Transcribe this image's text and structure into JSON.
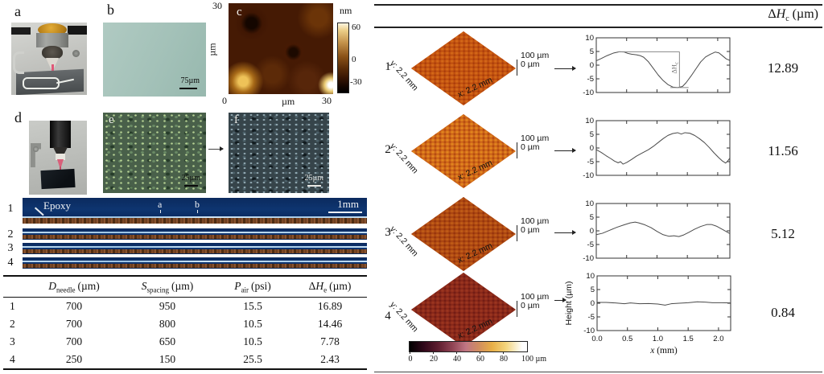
{
  "left": {
    "panels": {
      "a": {
        "label": "a"
      },
      "b": {
        "label": "b",
        "scale": "75µm"
      },
      "c": {
        "label": "c",
        "colorbar_title": "nm",
        "colorbar_ticks": [
          "60",
          "0",
          "-30"
        ],
        "axis_top": "30",
        "axis_left_unit": "µm",
        "axis_bottom_left": "0",
        "axis_bottom_unit": "µm",
        "axis_bottom_right": "30"
      },
      "d": {
        "label": "d"
      },
      "e": {
        "label": "e",
        "scale": "25µm"
      },
      "f": {
        "label": "f",
        "scale": "25µm"
      }
    },
    "stripes": {
      "row_labels": [
        "1",
        "2",
        "3",
        "4"
      ],
      "epoxy_label": "Epoxy",
      "marker_a": "a",
      "marker_b": "b",
      "scale_label": "1mm"
    },
    "table": {
      "headers": [
        {
          "sym": "D",
          "sub": "needle",
          "unit": "(µm)"
        },
        {
          "sym": "S",
          "sub": "spacing",
          "unit": "(µm)"
        },
        {
          "sym": "P",
          "sub": "air",
          "unit": "(psi)"
        },
        {
          "prefix": "Δ",
          "sym": "H",
          "sub": "e",
          "unit": "(µm)"
        }
      ],
      "rows": [
        {
          "id": "1",
          "d": "700",
          "s": "950",
          "p": "15.5",
          "h": "16.89"
        },
        {
          "id": "2",
          "d": "700",
          "s": "800",
          "p": "10.5",
          "h": "14.46"
        },
        {
          "id": "3",
          "d": "700",
          "s": "650",
          "p": "10.5",
          "h": "7.78"
        },
        {
          "id": "4",
          "d": "250",
          "s": "150",
          "p": "25.5",
          "h": "2.43"
        }
      ]
    }
  },
  "right": {
    "header": {
      "prefix": "Δ",
      "sym": "H",
      "sub": "c",
      "unit": "(µm)"
    },
    "rows": [
      {
        "num": "1",
        "y_label": "y: 2.2 mm",
        "x_label": "x: 2.2 mm",
        "scale_top": "100 µm",
        "scale_bottom": "0 µm",
        "value": "12.89"
      },
      {
        "num": "2",
        "y_label": "y: 2.2 mm",
        "x_label": "x: 2.2 mm",
        "scale_top": "100 µm",
        "scale_bottom": "0 µm",
        "value": "11.56"
      },
      {
        "num": "3",
        "y_label": "y: 2.2 mm",
        "x_label": "x: 2.2 mm",
        "scale_top": "100 µm",
        "scale_bottom": "0 µm",
        "value": "5.12"
      },
      {
        "num": "4",
        "y_label": "y: 2.2 mm",
        "x_label": "x: 2.2 mm",
        "scale_top": "100 µm",
        "scale_bottom": "0 µm",
        "value": "0.84"
      }
    ],
    "colorbar": {
      "ticks": [
        "0",
        "20",
        "40",
        "60",
        "80"
      ],
      "end_label": "100 µm"
    }
  },
  "colors": {
    "surface_orange": "#d1691a",
    "surface_dark_red": "#8c2a1a",
    "epoxy_blue": "#0e3570",
    "afm_brown": "#451a04"
  },
  "chart_data": [
    {
      "type": "line",
      "title": "",
      "xlabel": "",
      "ylabel": "",
      "xlim": [
        0,
        2.2
      ],
      "ylim": [
        -10,
        10
      ],
      "yticks": [
        10,
        5,
        0,
        -5,
        -10
      ],
      "xticks": [
        0,
        0.5,
        1.0,
        1.5,
        2.0
      ],
      "show_xlabels": false,
      "points": [
        [
          0,
          1.6
        ],
        [
          0.08,
          2.4
        ],
        [
          0.18,
          3.5
        ],
        [
          0.28,
          4.4
        ],
        [
          0.38,
          4.9
        ],
        [
          0.46,
          4.8
        ],
        [
          0.52,
          4.3
        ],
        [
          0.58,
          4.0
        ],
        [
          0.66,
          3.8
        ],
        [
          0.72,
          3.5
        ],
        [
          0.78,
          2.9
        ],
        [
          0.86,
          1.2
        ],
        [
          0.94,
          -1.2
        ],
        [
          1.02,
          -3.6
        ],
        [
          1.1,
          -5.6
        ],
        [
          1.18,
          -7.1
        ],
        [
          1.26,
          -8.0
        ],
        [
          1.34,
          -8.2
        ],
        [
          1.42,
          -7.8
        ],
        [
          1.48,
          -6.4
        ],
        [
          1.56,
          -4.0
        ],
        [
          1.64,
          -1.4
        ],
        [
          1.72,
          1.2
        ],
        [
          1.8,
          3.0
        ],
        [
          1.88,
          4.0
        ],
        [
          1.96,
          4.8
        ],
        [
          2.02,
          4.5
        ],
        [
          2.08,
          3.4
        ],
        [
          2.14,
          2.3
        ],
        [
          2.2,
          1.7
        ]
      ],
      "annotation": {
        "h_y": 4.9,
        "h_x0": 0.36,
        "h_x1": 1.37,
        "v_x": 1.37,
        "v_top": 4.9,
        "v_bot": -8.2,
        "b_y": -8.2,
        "b_x0": 1.22,
        "b_x1": 1.52,
        "label_prefix": "ΔH",
        "label_sub": "c"
      }
    },
    {
      "type": "line",
      "xlim": [
        0,
        2.2
      ],
      "ylim": [
        -10,
        10
      ],
      "yticks": [
        10,
        5,
        0,
        -5,
        -10
      ],
      "xticks": [
        0,
        0.5,
        1.0,
        1.5,
        2.0
      ],
      "show_xlabels": false,
      "points": [
        [
          0,
          -0.6
        ],
        [
          0.08,
          -1.6
        ],
        [
          0.16,
          -2.8
        ],
        [
          0.24,
          -3.9
        ],
        [
          0.3,
          -4.8
        ],
        [
          0.36,
          -5.4
        ],
        [
          0.4,
          -5.0
        ],
        [
          0.44,
          -5.9
        ],
        [
          0.5,
          -5.3
        ],
        [
          0.58,
          -4.2
        ],
        [
          0.66,
          -3.0
        ],
        [
          0.76,
          -1.8
        ],
        [
          0.86,
          -0.6
        ],
        [
          0.94,
          0.6
        ],
        [
          1.02,
          2.0
        ],
        [
          1.1,
          3.4
        ],
        [
          1.18,
          4.6
        ],
        [
          1.26,
          5.3
        ],
        [
          1.34,
          5.6
        ],
        [
          1.4,
          5.1
        ],
        [
          1.46,
          5.6
        ],
        [
          1.54,
          5.4
        ],
        [
          1.62,
          4.6
        ],
        [
          1.7,
          3.4
        ],
        [
          1.78,
          2.0
        ],
        [
          1.86,
          0.2
        ],
        [
          1.94,
          -1.8
        ],
        [
          2.02,
          -3.6
        ],
        [
          2.08,
          -4.8
        ],
        [
          2.13,
          -5.5
        ],
        [
          2.16,
          -4.9
        ],
        [
          2.2,
          -3.7
        ]
      ]
    },
    {
      "type": "line",
      "xlim": [
        0,
        2.2
      ],
      "ylim": [
        -10,
        10
      ],
      "yticks": [
        10,
        5,
        0,
        -5,
        -10
      ],
      "xticks": [
        0,
        0.5,
        1.0,
        1.5,
        2.0
      ],
      "show_xlabels": false,
      "points": [
        [
          0,
          -1.4
        ],
        [
          0.1,
          -0.9
        ],
        [
          0.22,
          0.2
        ],
        [
          0.34,
          1.3
        ],
        [
          0.46,
          2.2
        ],
        [
          0.56,
          2.9
        ],
        [
          0.64,
          3.2
        ],
        [
          0.7,
          2.9
        ],
        [
          0.8,
          2.2
        ],
        [
          0.9,
          1.2
        ],
        [
          1.0,
          -0.2
        ],
        [
          1.1,
          -1.4
        ],
        [
          1.2,
          -2.0
        ],
        [
          1.28,
          -1.8
        ],
        [
          1.36,
          -2.1
        ],
        [
          1.44,
          -1.5
        ],
        [
          1.52,
          -0.6
        ],
        [
          1.62,
          0.6
        ],
        [
          1.72,
          1.6
        ],
        [
          1.82,
          2.3
        ],
        [
          1.9,
          2.3
        ],
        [
          1.98,
          1.7
        ],
        [
          2.08,
          0.5
        ],
        [
          2.2,
          -1.0
        ]
      ]
    },
    {
      "type": "line",
      "xlabel_sym": "x",
      "xlabel_unit": " (mm)",
      "ylabel": "Height (µm)",
      "xlim": [
        0,
        2.2
      ],
      "ylim": [
        -10,
        10
      ],
      "yticks": [
        10,
        5,
        0,
        -5,
        -10
      ],
      "xticks": [
        0,
        0.5,
        1.0,
        1.5,
        2.0
      ],
      "xtick_labels": [
        "0.0",
        "0.5",
        "1.0",
        "1.5",
        "2.0"
      ],
      "show_xlabels": true,
      "points": [
        [
          0,
          0.3
        ],
        [
          0.15,
          0.3
        ],
        [
          0.3,
          0.1
        ],
        [
          0.45,
          -0.2
        ],
        [
          0.55,
          0.1
        ],
        [
          0.7,
          -0.2
        ],
        [
          0.85,
          -0.1
        ],
        [
          1.0,
          -0.3
        ],
        [
          1.12,
          -0.7
        ],
        [
          1.22,
          -0.2
        ],
        [
          1.35,
          0.0
        ],
        [
          1.5,
          0.2
        ],
        [
          1.65,
          0.5
        ],
        [
          1.78,
          0.4
        ],
        [
          1.9,
          0.2
        ],
        [
          2.05,
          0.2
        ],
        [
          2.2,
          0.1
        ]
      ]
    }
  ]
}
